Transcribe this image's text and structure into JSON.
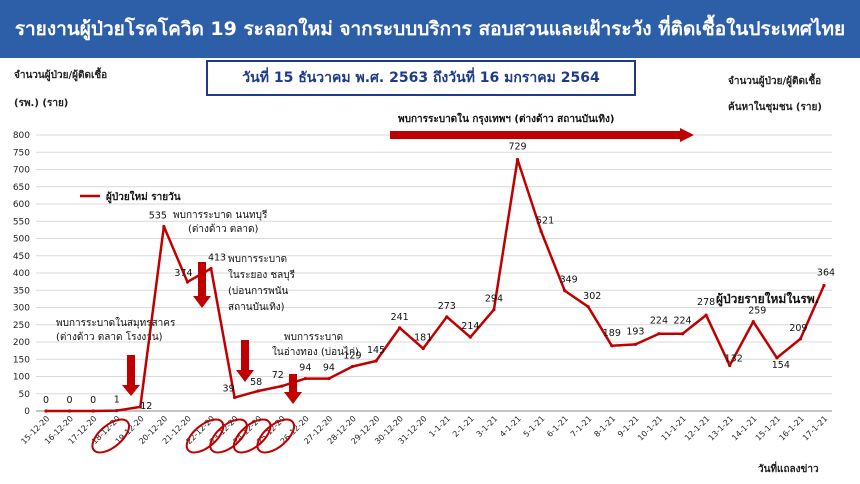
{
  "header": {
    "title": "รายงานผู้ป่วยโรคโควิด 19 ระลอกใหม่ จากระบบบริการ สอบสวนและเฝ้าระวัง ที่ติดเชื้อในประเทศไทย"
  },
  "date_range": "วันที่ 15 ธันวาคม พ.ศ. 2563 ถึงวันที่ 16 มกราคม 2564",
  "left_axis": {
    "line1": "จำนวนผู้ป่วย/ผู้ติดเชื้อ",
    "line2": "(รพ.) (ราย)"
  },
  "right_axis": {
    "line1": "จำนวนผู้ป่วย/ผู้ติดเชื้อ",
    "line2": "ค้นหาในชุมชน (ราย)"
  },
  "x_axis_title": "วันที่แถลงข่าว",
  "colors": {
    "header": "#2d5fa9",
    "line": "#c00000",
    "date_box": "#1f3a8a",
    "grid": "#d9d9d9"
  },
  "chart_data": {
    "type": "line",
    "title": "",
    "xlabel": "วันที่แถลงข่าว",
    "ylabel": "จำนวนผู้ป่วย/ผู้ติดเชื้อ (รพ.) (ราย)",
    "ylim": [
      0,
      800
    ],
    "yticks": [
      0,
      50,
      100,
      150,
      200,
      250,
      300,
      350,
      400,
      450,
      500,
      550,
      600,
      650,
      700,
      750,
      800
    ],
    "grid": true,
    "legend": "top-left",
    "categories": [
      "15-12-20",
      "16-12-20",
      "17-12-20",
      "18-12-20",
      "19-12-20",
      "20-12-20",
      "21-12-20",
      "22-12-20",
      "23-12-20",
      "24-12-20",
      "25-12-20",
      "26-12-20",
      "27-12-20",
      "28-12-20",
      "29-12-20",
      "30-12-20",
      "31-12-20",
      "1-1-21",
      "2-1-21",
      "3-1-21",
      "4-1-21",
      "5-1-21",
      "6-1-21",
      "7-1-21",
      "8-1-21",
      "9-1-21",
      "10-1-21",
      "11-1-21",
      "12-1-21",
      "13-1-21",
      "14-1-21",
      "15-1-21",
      "16-1-21",
      "17-1-21"
    ],
    "series": [
      {
        "name": "ผู้ป่วยใหม่ รายวัน",
        "values": [
          0,
          0,
          0,
          1,
          12,
          535,
          374,
          413,
          39,
          58,
          72,
          94,
          94,
          129,
          145,
          241,
          181,
          273,
          214,
          294,
          729,
          521,
          349,
          302,
          189,
          193,
          224,
          224,
          278,
          132,
          259,
          154,
          209,
          364
        ],
        "labels": [
          "0",
          "0",
          "0",
          "1",
          "12",
          "535",
          "374",
          "413",
          "39",
          "58",
          "72",
          "94",
          "94",
          "129",
          "145",
          "241",
          "181",
          "273",
          "214",
          "294",
          "729",
          "521",
          "349",
          "302",
          "189",
          "193",
          "224",
          "224",
          "278",
          "132",
          "259",
          "154",
          "209",
          "364"
        ]
      }
    ],
    "annotations": [
      {
        "id": "bangkok",
        "text": "พบการระบาดใน กรุงเทพฯ (ต่างด้าว สถานบันเทิง)"
      },
      {
        "id": "samutsakhon",
        "lines": [
          "พบการระบาดในสมุทรสาคร",
          "(ต่างด้าว ตลาด โรงงาน)"
        ]
      },
      {
        "id": "nonthaburi",
        "lines": [
          "พบการระบาด นนทบุรี",
          "(ต่างด้าว ตลาด)"
        ]
      },
      {
        "id": "rayong",
        "lines": [
          "พบการระบาด",
          "ในระยอง ชลบุรี",
          "(บ่อนการพนัน",
          "สถานบันเทิง)"
        ]
      },
      {
        "id": "angthong",
        "lines": [
          "พบการระบาด",
          "ในอ่างทอง (บ่อนไก่)"
        ]
      },
      {
        "id": "hospital",
        "text": "ผู้ป่วยรายใหม่ในรพ."
      }
    ]
  }
}
